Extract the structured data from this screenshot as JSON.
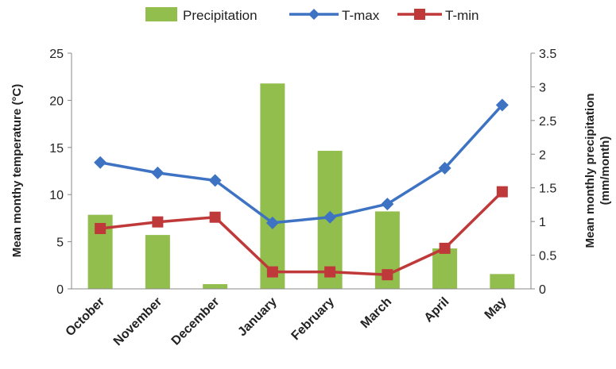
{
  "chart_data": {
    "type": "bar+line",
    "categories": [
      "October",
      "November",
      "December",
      "January",
      "February",
      "March",
      "April",
      "May"
    ],
    "bar_series": {
      "name": "Precipitation",
      "axis": "right",
      "color": "#92BE4D",
      "values": [
        1.1,
        0.8,
        0.07,
        3.05,
        2.05,
        1.15,
        0.6,
        0.22
      ]
    },
    "line_series": [
      {
        "name": "T-max",
        "axis": "left",
        "color": "#3E73C4",
        "marker": "diamond",
        "values": [
          13.4,
          12.3,
          11.5,
          7.0,
          7.6,
          9.0,
          12.8,
          19.5
        ]
      },
      {
        "name": "T-min",
        "axis": "left",
        "color": "#C0393A",
        "marker": "square",
        "values": [
          6.4,
          7.1,
          7.6,
          1.8,
          1.8,
          1.5,
          4.3,
          10.3
        ]
      }
    ],
    "y_left": {
      "label": "Mean monthy temperature (°C)",
      "lim": [
        0,
        25
      ],
      "ticks": [
        "0",
        "5",
        "10",
        "15",
        "20",
        "25"
      ]
    },
    "y_right": {
      "label_line1": "Mean monthly precipitation",
      "label_line2": "(mm/month)",
      "lim": [
        0,
        3.5
      ],
      "ticks": [
        "0",
        "0.5",
        "1",
        "1.5",
        "2",
        "2.5",
        "3",
        "3.5"
      ]
    },
    "legend_position": "top",
    "grid": false
  }
}
